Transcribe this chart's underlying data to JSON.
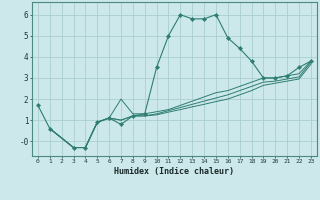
{
  "xlabel": "Humidex (Indice chaleur)",
  "background_color": "#cce8ea",
  "grid_color": "#aacfd2",
  "line_color": "#2e7d72",
  "xlim": [
    -0.5,
    23.5
  ],
  "ylim": [
    -0.7,
    6.6
  ],
  "xticks": [
    0,
    1,
    2,
    3,
    4,
    5,
    6,
    7,
    8,
    9,
    10,
    11,
    12,
    13,
    14,
    15,
    16,
    17,
    18,
    19,
    20,
    21,
    22,
    23
  ],
  "yticks": [
    0,
    1,
    2,
    3,
    4,
    5,
    6
  ],
  "ytick_labels": [
    "-0",
    "1",
    "2",
    "3",
    "4",
    "5",
    "6"
  ],
  "lines": [
    {
      "x": [
        0,
        1,
        3,
        4,
        5,
        6,
        7,
        8,
        9,
        10,
        11,
        12,
        13,
        14,
        15,
        16,
        17,
        18,
        19,
        20,
        21,
        22,
        23
      ],
      "y": [
        1.7,
        0.6,
        -0.3,
        -0.3,
        0.9,
        1.1,
        0.8,
        1.2,
        1.3,
        3.5,
        5.0,
        6.0,
        5.8,
        5.8,
        6.0,
        4.9,
        4.4,
        3.8,
        3.0,
        3.0,
        3.1,
        3.5,
        3.8
      ],
      "has_markers": true
    },
    {
      "x": [
        1,
        3,
        4,
        5,
        6,
        7,
        8,
        9,
        10,
        11,
        12,
        13,
        14,
        15,
        16,
        17,
        18,
        19,
        20,
        21,
        22,
        23
      ],
      "y": [
        0.6,
        -0.3,
        -0.3,
        0.9,
        1.1,
        2.0,
        1.3,
        1.3,
        1.4,
        1.5,
        1.7,
        1.9,
        2.1,
        2.3,
        2.4,
        2.6,
        2.8,
        3.0,
        3.0,
        3.1,
        3.2,
        3.8
      ],
      "has_markers": false
    },
    {
      "x": [
        1,
        3,
        4,
        5,
        6,
        7,
        8,
        9,
        10,
        11,
        12,
        13,
        14,
        15,
        16,
        17,
        18,
        19,
        20,
        21,
        22,
        23
      ],
      "y": [
        0.6,
        -0.3,
        -0.3,
        0.9,
        1.1,
        1.0,
        1.2,
        1.2,
        1.3,
        1.45,
        1.6,
        1.75,
        1.9,
        2.05,
        2.2,
        2.4,
        2.6,
        2.8,
        2.85,
        2.95,
        3.05,
        3.75
      ],
      "has_markers": false
    },
    {
      "x": [
        1,
        3,
        4,
        5,
        6,
        7,
        8,
        9,
        10,
        11,
        12,
        13,
        14,
        15,
        16,
        17,
        18,
        19,
        20,
        21,
        22,
        23
      ],
      "y": [
        0.6,
        -0.3,
        -0.3,
        0.9,
        1.1,
        1.0,
        1.2,
        1.2,
        1.25,
        1.38,
        1.5,
        1.63,
        1.75,
        1.88,
        2.0,
        2.2,
        2.4,
        2.65,
        2.75,
        2.85,
        2.95,
        3.65
      ],
      "has_markers": false
    }
  ]
}
